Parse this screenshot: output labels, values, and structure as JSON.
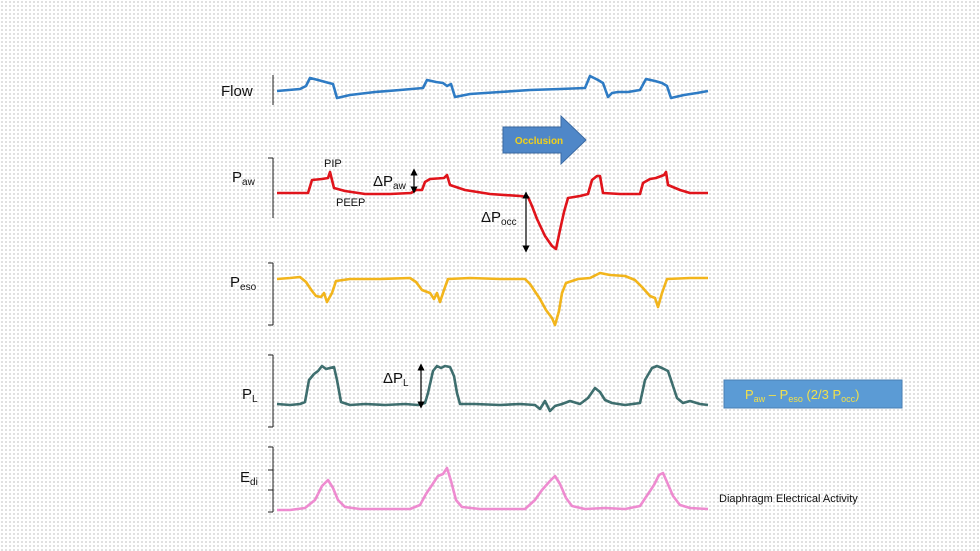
{
  "traces": [
    {
      "label_main": "Flow",
      "label_sub": "",
      "color": "#2e7bc4"
    },
    {
      "label_main": "P",
      "label_sub": "aw",
      "color": "#e0141b"
    },
    {
      "label_main": "P",
      "label_sub": "eso",
      "color": "#f2b51c"
    },
    {
      "label_main": "P",
      "label_sub": "L",
      "color": "#3e6e6e"
    },
    {
      "label_main": "E",
      "label_sub": "di",
      "color": "#ee8bd0"
    }
  ],
  "annotations": {
    "pip": "PIP",
    "peep": "PEEP",
    "delta": "ΔP",
    "delta_paw_sub": "aw",
    "delta_pocc_sub": "occ",
    "delta_pl_sub": "L"
  },
  "occlusion": {
    "label": "Occlusion",
    "fill": "#4f87c8",
    "text_color": "#f2d11a"
  },
  "formula_box": {
    "p_aw": "P",
    "p_aw_sub": "aw",
    "minus": " – ",
    "p_eso": "P",
    "p_eso_sub": "eso",
    "mid": " (2/3  ",
    "p_occ": "P",
    "p_occ_sub": "occ",
    "end": ")",
    "fill": "#5b9bd5",
    "text_color": "#f2e14a"
  },
  "edi_caption": "Diaphragm Electrical Activity"
}
